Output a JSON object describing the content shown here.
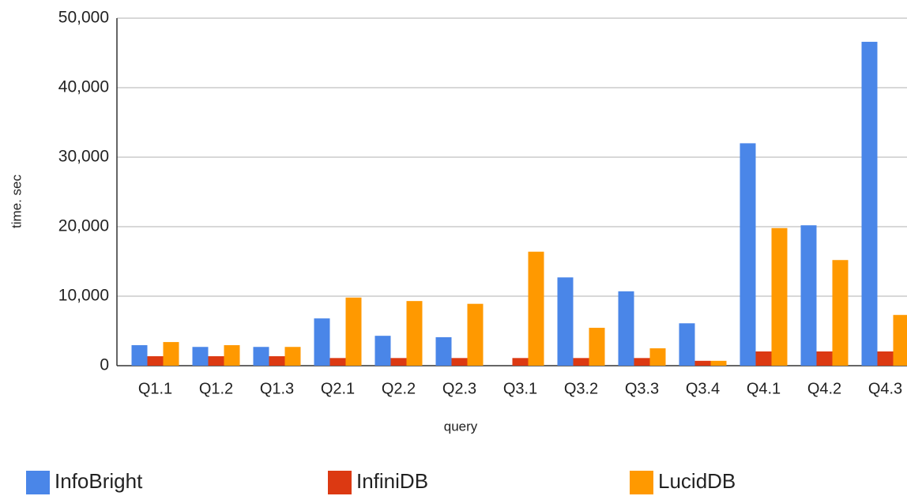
{
  "chart_data": {
    "type": "bar",
    "x_label": "query",
    "y_label": "time. sec",
    "categories": [
      "Q1.1",
      "Q1.2",
      "Q1.3",
      "Q2.1",
      "Q2.2",
      "Q2.3",
      "Q3.1",
      "Q3.2",
      "Q3.3",
      "Q3.4",
      "Q4.1",
      "Q4.2",
      "Q4.3"
    ],
    "series": [
      {
        "name": "InfoBright",
        "color": "#4a86e8",
        "values": [
          2950,
          2700,
          2700,
          6800,
          4300,
          4100,
          0,
          12700,
          10700,
          6100,
          32000,
          20200,
          46600
        ]
      },
      {
        "name": "InfiniDB",
        "color": "#dc3912",
        "values": [
          1360,
          1360,
          1360,
          1100,
          1100,
          1100,
          1100,
          1100,
          1100,
          700,
          2050,
          2050,
          2050
        ]
      },
      {
        "name": "LucidDB",
        "color": "#ff9900",
        "values": [
          3400,
          2950,
          2700,
          9800,
          9300,
          8900,
          16400,
          5450,
          2500,
          700,
          19800,
          15200,
          7300
        ]
      }
    ],
    "ylim": [
      0,
      50000
    ],
    "yticks": [
      0,
      {
        "value": 10000,
        "label": "10,000"
      },
      {
        "value": 20000,
        "label": "20,000"
      },
      {
        "value": 30000,
        "label": "30,000"
      },
      {
        "value": 40000,
        "label": "40,000"
      },
      {
        "value": 50000,
        "label": "50,000"
      }
    ],
    "grid": true,
    "legend": "bottom"
  }
}
